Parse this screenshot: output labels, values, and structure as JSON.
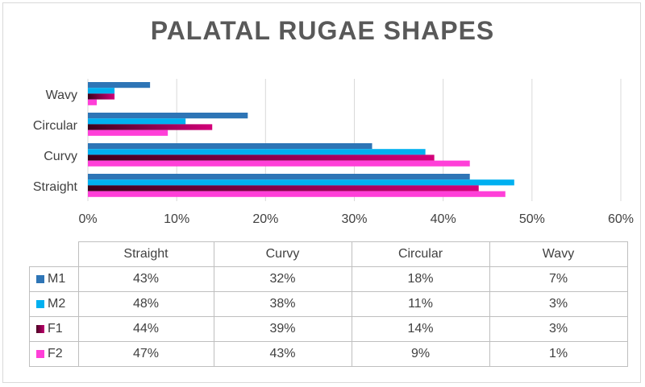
{
  "chart_data": {
    "type": "bar",
    "orientation": "horizontal",
    "title": "PALATAL RUGAE SHAPES",
    "categories": [
      "Straight",
      "Curvy",
      "Circular",
      "Wavy"
    ],
    "series": [
      {
        "name": "M1",
        "values": [
          43,
          32,
          18,
          7
        ],
        "color": "#2e75b6"
      },
      {
        "name": "M2",
        "values": [
          48,
          38,
          11,
          3
        ],
        "color": "#00b0f0"
      },
      {
        "name": "F1",
        "values": [
          44,
          39,
          14,
          3
        ],
        "color": "#8b0045"
      },
      {
        "name": "F2",
        "values": [
          47,
          43,
          9,
          1
        ],
        "color": "#ff3fd8"
      }
    ],
    "xlim": [
      0,
      60
    ],
    "xticks": [
      "0%",
      "10%",
      "20%",
      "30%",
      "40%",
      "50%",
      "60%"
    ],
    "grid": true,
    "legend": "data table below chart",
    "table": {
      "headers": [
        "Straight",
        "Curvy",
        "Circular",
        "Wavy"
      ],
      "rows": [
        {
          "label": "M1",
          "cells": [
            "43%",
            "32%",
            "18%",
            "7%"
          ]
        },
        {
          "label": "M2",
          "cells": [
            "48%",
            "38%",
            "11%",
            "3%"
          ]
        },
        {
          "label": "F1",
          "cells": [
            "44%",
            "39%",
            "14%",
            "3%"
          ]
        },
        {
          "label": "F2",
          "cells": [
            "47%",
            "43%",
            "9%",
            "1%"
          ]
        }
      ]
    }
  }
}
